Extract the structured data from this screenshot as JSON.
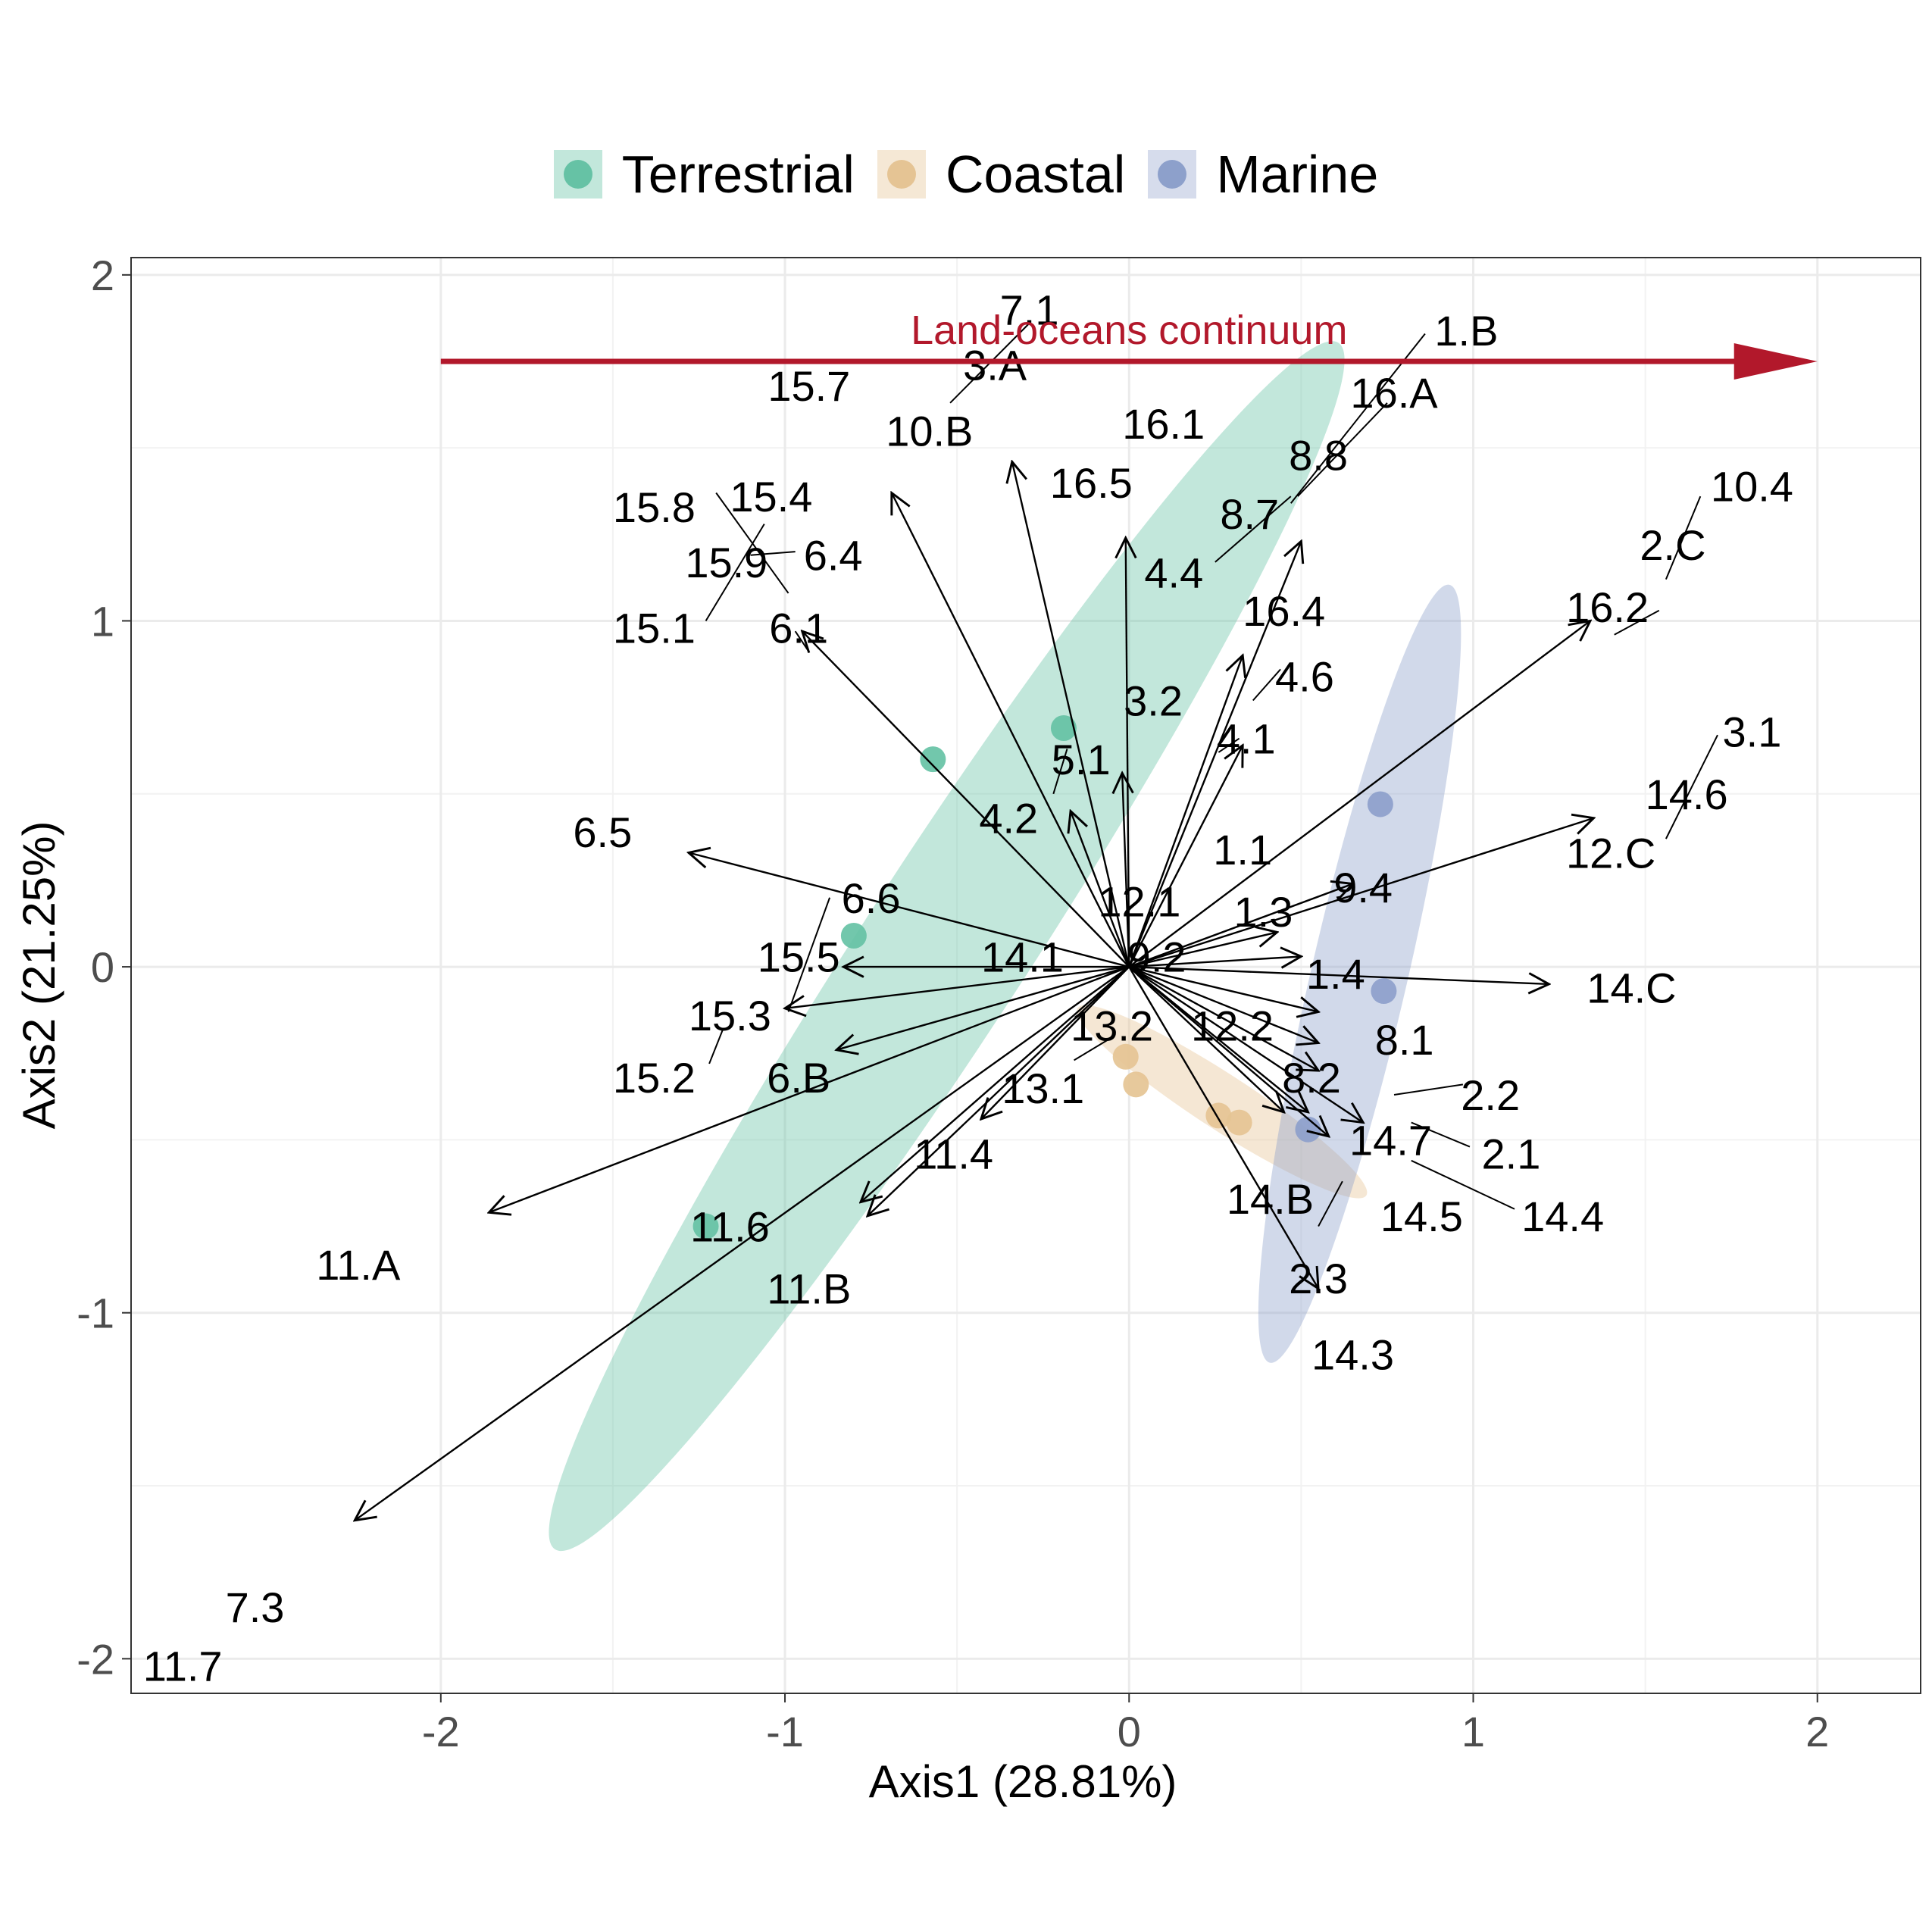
{
  "legend": {
    "items": [
      {
        "label": "Terrestrial",
        "color": "#66C2A5"
      },
      {
        "label": "Coastal",
        "color": "#E5C494"
      },
      {
        "label": "Marine",
        "color": "#8DA0CB"
      }
    ]
  },
  "chart_data": {
    "type": "scatter",
    "title": "",
    "xlabel": "Axis1 (28.81%)",
    "ylabel": "Axis2 (21.25%)",
    "xlim": [
      -2.9,
      2.3
    ],
    "ylim": [
      -2.1,
      2.05
    ],
    "x_ticks": [
      -2,
      -1,
      0,
      1,
      2
    ],
    "y_ticks": [
      -2,
      -1,
      0,
      1,
      2
    ],
    "x_tick_labels": [
      "-2",
      "-1",
      "0",
      "1",
      "2"
    ],
    "y_tick_labels": [
      "-2",
      "-1",
      "0",
      "1",
      "2"
    ],
    "grid": true,
    "legend_position": "top",
    "annotation": {
      "text": "Land-oceans continuum",
      "color": "#B2182B",
      "x_start": -2.0,
      "x_end": 2.0,
      "y": 1.75,
      "label_x": 0.0,
      "label_y": 1.84
    },
    "series": [
      {
        "name": "Terrestrial",
        "color": "#66C2A5",
        "points": [
          [
            -0.19,
            0.69
          ],
          [
            -0.57,
            0.6
          ],
          [
            -0.8,
            0.09
          ],
          [
            -1.23,
            -0.75
          ]
        ]
      },
      {
        "name": "Coastal",
        "color": "#E5C494",
        "points": [
          [
            -0.01,
            -0.26
          ],
          [
            0.02,
            -0.34
          ],
          [
            0.26,
            -0.43
          ],
          [
            0.32,
            -0.45
          ]
        ]
      },
      {
        "name": "Marine",
        "color": "#8DA0CB",
        "points": [
          [
            0.73,
            0.47
          ],
          [
            0.74,
            -0.07
          ],
          [
            0.52,
            -0.47
          ]
        ]
      }
    ],
    "ellipses": [
      {
        "group": "Terrestrial",
        "color": "#66C2A5",
        "cx": -0.53,
        "cy": 0.06,
        "rx": 2.09,
        "ry": 0.24,
        "angle_deg": 57
      },
      {
        "group": "Coastal",
        "color": "#E5C494",
        "cx": 0.27,
        "cy": -0.39,
        "rx": 0.5,
        "ry": 0.08,
        "angle_deg": -33
      },
      {
        "group": "Marine",
        "color": "#8DA0CB",
        "cx": 0.67,
        "cy": -0.02,
        "rx": 1.16,
        "ry": 0.14,
        "angle_deg": 77
      }
    ],
    "arrows": [
      {
        "x": 1.34,
        "y": 1.0
      },
      {
        "x": -0.78,
        "y": -0.68
      },
      {
        "x": -1.86,
        "y": -0.71
      },
      {
        "x": -2.25,
        "y": -1.6
      },
      {
        "x": 1.22,
        "y": -0.05
      },
      {
        "x": 1.35,
        "y": 0.43
      },
      {
        "x": -1.28,
        "y": 0.33
      },
      {
        "x": -0.69,
        "y": 1.37
      },
      {
        "x": -0.34,
        "y": 1.46
      },
      {
        "x": -0.01,
        "y": 1.24
      },
      {
        "x": 0.5,
        "y": 1.23
      },
      {
        "x": 0.33,
        "y": 0.9
      },
      {
        "x": -0.95,
        "y": 0.97
      },
      {
        "x": 0.33,
        "y": 0.64
      },
      {
        "x": -0.02,
        "y": 0.56
      },
      {
        "x": -0.17,
        "y": 0.45
      },
      {
        "x": -0.85,
        "y": -0.24
      },
      {
        "x": -1.0,
        "y": -0.12
      },
      {
        "x": -0.83,
        "y": 0.0
      },
      {
        "x": -0.43,
        "y": -0.44
      },
      {
        "x": -0.76,
        "y": -0.72
      },
      {
        "x": 0.55,
        "y": -0.13
      },
      {
        "x": 0.58,
        "y": -0.49
      },
      {
        "x": 0.52,
        "y": -0.42
      },
      {
        "x": 0.5,
        "y": 0.03
      },
      {
        "x": 0.55,
        "y": -0.22
      },
      {
        "x": 0.43,
        "y": 0.1
      },
      {
        "x": 0.65,
        "y": 0.24
      },
      {
        "x": 0.68,
        "y": -0.45
      },
      {
        "x": 0.55,
        "y": -0.93
      },
      {
        "x": 0.55,
        "y": -0.3
      },
      {
        "x": 0.45,
        "y": -0.42
      }
    ],
    "labels": [
      {
        "text": "7.1",
        "x": -0.29,
        "y": 1.9
      },
      {
        "text": "1.B",
        "x": 0.98,
        "y": 1.84
      },
      {
        "text": "3.A",
        "x": -0.39,
        "y": 1.74
      },
      {
        "text": "15.7",
        "x": -0.93,
        "y": 1.68
      },
      {
        "text": "16.A",
        "x": 0.77,
        "y": 1.66
      },
      {
        "text": "10.B",
        "x": -0.58,
        "y": 1.55
      },
      {
        "text": "16.1",
        "x": 0.1,
        "y": 1.57
      },
      {
        "text": "8.8",
        "x": 0.55,
        "y": 1.48
      },
      {
        "text": "16.5",
        "x": -0.11,
        "y": 1.4
      },
      {
        "text": "10.4",
        "x": 1.81,
        "y": 1.39
      },
      {
        "text": "15.8",
        "x": -1.38,
        "y": 1.33
      },
      {
        "text": "15.4",
        "x": -1.04,
        "y": 1.36
      },
      {
        "text": "8.7",
        "x": 0.35,
        "y": 1.31
      },
      {
        "text": "2.C",
        "x": 1.58,
        "y": 1.22
      },
      {
        "text": "15.9",
        "x": -1.17,
        "y": 1.17
      },
      {
        "text": "6.4",
        "x": -0.86,
        "y": 1.19
      },
      {
        "text": "4.4",
        "x": 0.13,
        "y": 1.14
      },
      {
        "text": "16.4",
        "x": 0.45,
        "y": 1.03
      },
      {
        "text": "16.2",
        "x": 1.39,
        "y": 1.04
      },
      {
        "text": "15.1",
        "x": -1.38,
        "y": 0.98
      },
      {
        "text": "6.1",
        "x": -0.96,
        "y": 0.98
      },
      {
        "text": "4.6",
        "x": 0.51,
        "y": 0.84
      },
      {
        "text": "3.2",
        "x": 0.07,
        "y": 0.77
      },
      {
        "text": "3.1",
        "x": 1.81,
        "y": 0.68
      },
      {
        "text": "4.1",
        "x": 0.34,
        "y": 0.66
      },
      {
        "text": "5.1",
        "x": -0.14,
        "y": 0.6
      },
      {
        "text": "14.6",
        "x": 1.62,
        "y": 0.5
      },
      {
        "text": "4.2",
        "x": -0.35,
        "y": 0.43
      },
      {
        "text": "6.5",
        "x": -1.53,
        "y": 0.39
      },
      {
        "text": "1.1",
        "x": 0.33,
        "y": 0.34
      },
      {
        "text": "12.C",
        "x": 1.4,
        "y": 0.33
      },
      {
        "text": "9.4",
        "x": 0.68,
        "y": 0.23
      },
      {
        "text": "6.6",
        "x": -0.75,
        "y": 0.2
      },
      {
        "text": "12.1",
        "x": 0.03,
        "y": 0.19
      },
      {
        "text": "1.3",
        "x": 0.39,
        "y": 0.16
      },
      {
        "text": "15.5",
        "x": -0.96,
        "y": 0.03
      },
      {
        "text": "14.1",
        "x": -0.31,
        "y": 0.03
      },
      {
        "text": "9.2",
        "x": 0.08,
        "y": 0.03
      },
      {
        "text": "1.4",
        "x": 0.6,
        "y": -0.02
      },
      {
        "text": "14.C",
        "x": 1.46,
        "y": -0.06
      },
      {
        "text": "15.3",
        "x": -1.16,
        "y": -0.14
      },
      {
        "text": "13.2",
        "x": -0.05,
        "y": -0.17
      },
      {
        "text": "12.2",
        "x": 0.3,
        "y": -0.17
      },
      {
        "text": "8.1",
        "x": 0.8,
        "y": -0.21
      },
      {
        "text": "15.2",
        "x": -1.38,
        "y": -0.32
      },
      {
        "text": "6.B",
        "x": -0.96,
        "y": -0.32
      },
      {
        "text": "8.2",
        "x": 0.53,
        "y": -0.32
      },
      {
        "text": "13.1",
        "x": -0.25,
        "y": -0.35
      },
      {
        "text": "2.2",
        "x": 1.05,
        "y": -0.37
      },
      {
        "text": "14.7",
        "x": 0.76,
        "y": -0.5
      },
      {
        "text": "2.1",
        "x": 1.11,
        "y": -0.54
      },
      {
        "text": "11.4",
        "x": -0.51,
        "y": -0.54
      },
      {
        "text": "11.6",
        "x": -1.16,
        "y": -0.75
      },
      {
        "text": "14.B",
        "x": 0.41,
        "y": -0.67
      },
      {
        "text": "14.5",
        "x": 0.85,
        "y": -0.72
      },
      {
        "text": "14.4",
        "x": 1.26,
        "y": -0.72
      },
      {
        "text": "11.A",
        "x": -2.24,
        "y": -0.86
      },
      {
        "text": "2.3",
        "x": 0.55,
        "y": -0.9
      },
      {
        "text": "11.B",
        "x": -0.93,
        "y": -0.93
      },
      {
        "text": "14.3",
        "x": 0.65,
        "y": -1.12
      },
      {
        "text": "7.3",
        "x": -2.54,
        "y": -1.85
      },
      {
        "text": "11.7",
        "x": -2.75,
        "y": -2.02
      }
    ],
    "leader_lines": [
      [
        [
          -0.52,
          1.63
        ],
        [
          -0.29,
          1.86
        ]
      ],
      [
        [
          0.47,
          1.34
        ],
        [
          0.86,
          1.83
        ]
      ],
      [
        [
          0.49,
          1.36
        ],
        [
          0.75,
          1.63
        ]
      ],
      [
        [
          0.25,
          1.17
        ],
        [
          0.47,
          1.36
        ]
      ],
      [
        [
          1.56,
          1.12
        ],
        [
          1.66,
          1.36
        ]
      ],
      [
        [
          1.41,
          0.96
        ],
        [
          1.54,
          1.03
        ]
      ],
      [
        [
          -1.2,
          1.37
        ],
        [
          -0.99,
          1.08
        ]
      ],
      [
        [
          -1.23,
          1.0
        ],
        [
          -1.06,
          1.28
        ]
      ],
      [
        [
          -1.1,
          1.19
        ],
        [
          -0.97,
          1.2
        ]
      ],
      [
        [
          -0.97,
          0.97
        ],
        [
          -0.93,
          0.91
        ]
      ],
      [
        [
          1.56,
          0.37
        ],
        [
          1.71,
          0.67
        ]
      ],
      [
        [
          0.36,
          0.77
        ],
        [
          0.44,
          0.86
        ]
      ],
      [
        [
          0.26,
          0.62
        ],
        [
          0.32,
          0.66
        ]
      ],
      [
        [
          -0.22,
          0.5
        ],
        [
          -0.18,
          0.63
        ]
      ],
      [
        [
          -0.99,
          -0.13
        ],
        [
          -0.87,
          0.2
        ]
      ],
      [
        [
          -1.22,
          -0.28
        ],
        [
          -1.18,
          -0.18
        ]
      ],
      [
        [
          -0.16,
          -0.27
        ],
        [
          -0.06,
          -0.21
        ]
      ],
      [
        [
          0.77,
          -0.37
        ],
        [
          0.97,
          -0.34
        ]
      ],
      [
        [
          0.82,
          -0.45
        ],
        [
          0.99,
          -0.52
        ]
      ],
      [
        [
          0.82,
          -0.56
        ],
        [
          1.12,
          -0.7
        ]
      ],
      [
        [
          0.55,
          -0.75
        ],
        [
          0.62,
          -0.62
        ]
      ]
    ]
  }
}
